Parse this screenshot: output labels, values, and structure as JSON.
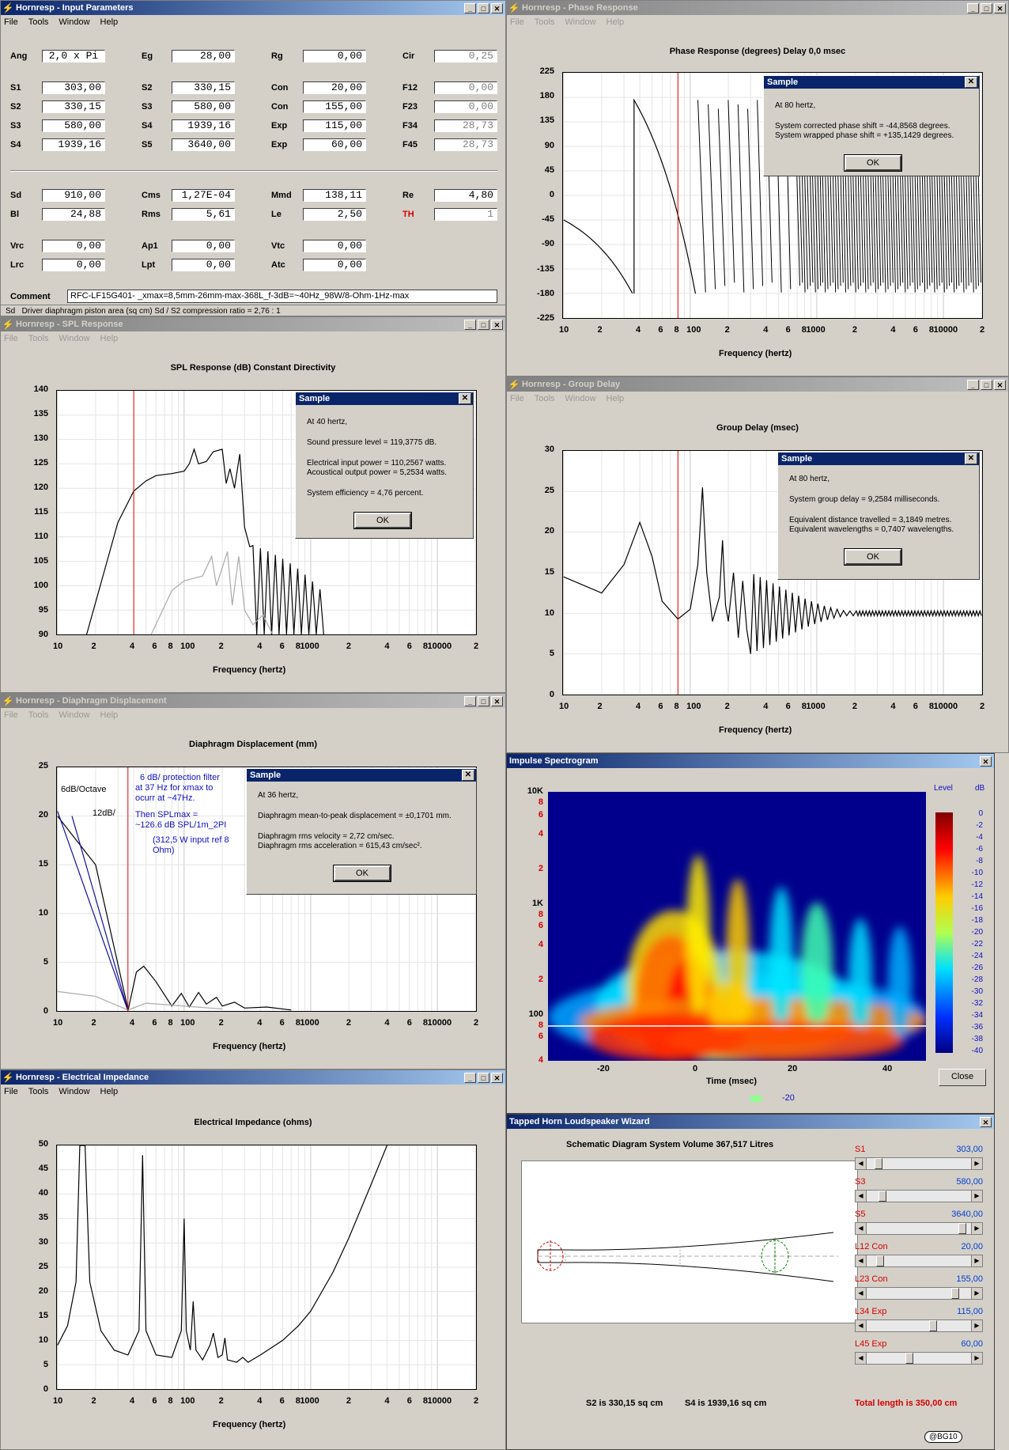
{
  "input_params": {
    "title": "Hornresp - Input Parameters",
    "menu": [
      "File",
      "Tools",
      "Window",
      "Help"
    ],
    "rows1": [
      [
        "Ang",
        "2,0 x Pi",
        "Eg",
        "28,00",
        "Rg",
        "0,00",
        "Cir",
        "0,25"
      ]
    ],
    "rows2": [
      [
        "S1",
        "303,00",
        "S2",
        "330,15",
        "Con",
        "20,00",
        "F12",
        "0,00"
      ],
      [
        "S2",
        "330,15",
        "S3",
        "580,00",
        "Con",
        "155,00",
        "F23",
        "0,00"
      ],
      [
        "S3",
        "580,00",
        "S4",
        "1939,16",
        "Exp",
        "115,00",
        "F34",
        "28,73"
      ],
      [
        "S4",
        "1939,16",
        "S5",
        "3640,00",
        "Exp",
        "60,00",
        "F45",
        "28,73"
      ]
    ],
    "rows3": [
      [
        "Sd",
        "910,00",
        "Cms",
        "1,27E-04",
        "Mmd",
        "138,11",
        "Re",
        "4,80"
      ],
      [
        "Bl",
        "24,88",
        "Rms",
        "5,61",
        "Le",
        "2,50",
        "TH",
        "1"
      ]
    ],
    "rows4": [
      [
        "Vrc",
        "0,00",
        "Ap1",
        "0,00",
        "Vtc",
        "0,00"
      ],
      [
        "Lrc",
        "0,00",
        "Lpt",
        "0,00",
        "Atc",
        "0,00"
      ]
    ],
    "comment_label": "Comment",
    "comment": "RFC-LF15G401- _xmax=8,5mm-26mm-max-368L_f-3dB=~40Hz_98W/8-Ohm-1Hz-max",
    "status_left": "Sd",
    "status": "Driver diaphragm piston area  (sq cm)    Sd / S2 compression ratio = 2,76 : 1"
  },
  "phase": {
    "title": "Hornresp - Phase Response",
    "menu": [
      "File",
      "Tools",
      "Window",
      "Help"
    ],
    "chart_title": "Phase Response (degrees)    Delay 0,0 msec",
    "xlabel": "Frequency (hertz)",
    "dialog": {
      "title": "Sample",
      "l1": "At 80 hertz,",
      "l2": "System corrected phase shift = -44,8568 degrees.",
      "l3": "System wrapped phase shift = +135,1429 degrees.",
      "ok": "OK"
    }
  },
  "spl": {
    "title": "Hornresp - SPL Response",
    "menu": [
      "File",
      "Tools",
      "Window",
      "Help"
    ],
    "chart_title": "SPL Response (dB)    Constant Directivity",
    "xlabel": "Frequency (hertz)",
    "dialog": {
      "title": "Sample",
      "l1": "At 40 hertz,",
      "l2": "Sound pressure level = 119,3775 dB.",
      "l3": "Electrical input power = 110,2567 watts.",
      "l4": "Acoustical output power = 5,2534 watts.",
      "l5": "System efficiency = 4,76 percent.",
      "ok": "OK"
    }
  },
  "group": {
    "title": "Hornresp - Group Delay",
    "menu": [
      "File",
      "Tools",
      "Window",
      "Help"
    ],
    "chart_title": "Group Delay (msec)",
    "xlabel": "Frequency (hertz)",
    "dialog": {
      "title": "Sample",
      "l1": "At 80 hertz,",
      "l2": "System group delay = 9,2584 milliseconds.",
      "l3": "Equivalent distance travelled = 3,1849 metres.",
      "l4": "Equivalent wavelengths = 0,7407 wavelengths.",
      "ok": "OK"
    }
  },
  "disp": {
    "title": "Hornresp - Diaphragm Displacement",
    "menu": [
      "File",
      "Tools",
      "Window",
      "Help"
    ],
    "chart_title": "Diaphragm Displacement (mm)",
    "xlabel": "Frequency (hertz)",
    "notes": {
      "a": "6dB/Octave",
      "b": "12dB/",
      "c1": "6 dB/ protection filter",
      "c2": "at 37 Hz for xmax to",
      "c3": "ocurr at ~47Hz.",
      "d1": "Then SPLmax =",
      "d2": "~126.6 dB SPL/1m_2PI",
      "e1": "(312,5 W input ref 8",
      "e2": "Ohm)"
    },
    "dialog": {
      "title": "Sample",
      "l1": "At 36 hertz,",
      "l2": "Diaphragm mean-to-peak displacement = ±0,1701 mm.",
      "l3": "Diaphragm rms velocity = 2,72 cm/sec.",
      "l4": "Diaphragm rms acceleration = 615,43 cm/sec².",
      "ok": "OK"
    }
  },
  "imp": {
    "title": "Hornresp - Electrical Impedance",
    "menu": [
      "File",
      "Tools",
      "Window",
      "Help"
    ],
    "chart_title": "Electrical Impedance (ohms)",
    "xlabel": "Frequency (hertz)"
  },
  "spectro": {
    "title": "Impulse Spectrogram",
    "yticks": [
      "10K",
      "8",
      "6",
      "4",
      "2",
      "1K",
      "8",
      "6",
      "4",
      "2",
      "100",
      "8",
      "6",
      "4"
    ],
    "xticks": [
      "-20",
      "0",
      "20",
      "40"
    ],
    "xlabel": "Time (msec)",
    "level_label": "Level",
    "db_label": "dB",
    "scale": [
      "0",
      "-2",
      "-4",
      "-6",
      "-8",
      "-10",
      "-12",
      "-14",
      "-16",
      "-18",
      "-20",
      "-22",
      "-24",
      "-26",
      "-28",
      "-30",
      "-32",
      "-34",
      "-36",
      "-38",
      "-40"
    ],
    "legend_val": "-20",
    "close": "Close"
  },
  "wizard": {
    "title": "Tapped Horn Loudspeaker Wizard",
    "schem_title": "Schematic Diagram    System Volume 367,517 Litres",
    "s2": "S2 is 330,15 sq cm",
    "s4": "S4 is 1939,16 sq cm",
    "total": "Total length is 350,00 cm",
    "credit": "@BG10",
    "sliders": [
      {
        "label": "S1",
        "value": "303,00",
        "pos": 0.08
      },
      {
        "label": "S3",
        "value": "580,00",
        "pos": 0.12
      },
      {
        "label": "S5",
        "value": "3640,00",
        "pos": 0.95
      },
      {
        "label": "L12 Con",
        "value": "20,00",
        "pos": 0.1
      },
      {
        "label": "L23 Con",
        "value": "155,00",
        "pos": 0.88
      },
      {
        "label": "L34 Exp",
        "value": "115,00",
        "pos": 0.65
      },
      {
        "label": "L45 Exp",
        "value": "60,00",
        "pos": 0.4
      }
    ]
  },
  "freq_ticks": [
    "10",
    "2",
    "4",
    "6",
    "8",
    "100",
    "2",
    "4",
    "6",
    "8",
    "1000",
    "2",
    "4",
    "6",
    "8",
    "10000",
    "2"
  ]
}
